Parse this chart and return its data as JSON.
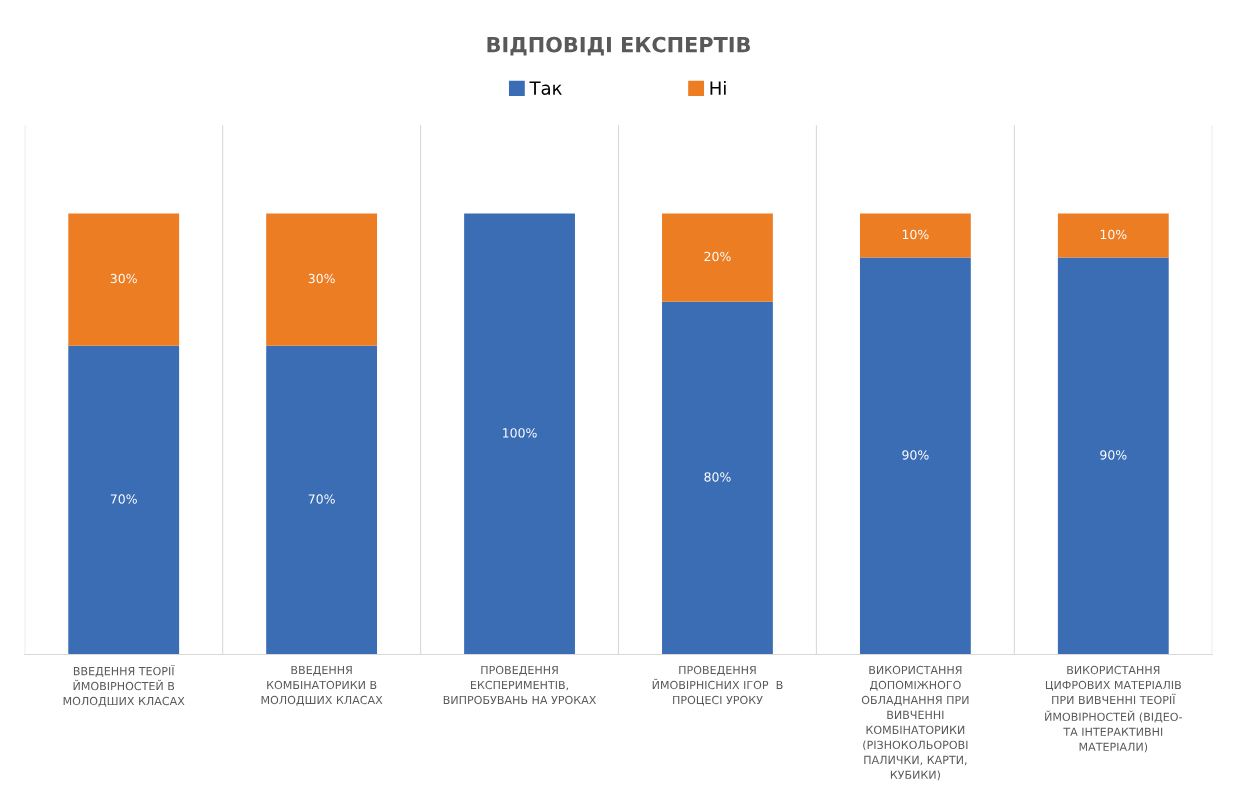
{
  "chart_data": {
    "type": "bar",
    "title": "ВІДПОВІДІ ЕКСПЕРТІВ",
    "categories": [
      "ВВЕДЕННЯ ТЕОРІЇ\nЙМОВІРНОСТЕЙ В\nМОЛОДШИХ КЛАСАХ",
      "ВВЕДЕННЯ\nКОМБІНАТОРИКИ В\nМОЛОДШИХ КЛАСАХ",
      "ПРОВЕДЕННЯ\nЕКСПЕРИМЕНТІВ,\nВИПРОБУВАНЬ НА УРОКАХ",
      "ПРОВЕДЕННЯ\nЙМОВІРНІСНИХ ІГОР  В\nПРОЦЕСІ УРОКУ",
      "ВИКОРИСТАННЯ\nДОПОМІЖНОГО\nОБЛАДНАННЯ ПРИ\nВИВЧЕННІ\nКОМБІНАТОРИКИ\n(РІЗНОКОЛЬОРОВІ\nПАЛИЧКИ, КАРТИ,\nКУБИКИ)",
      "ВИКОРИСТАННЯ\nЦИФРОВИХ МАТЕРІАЛІВ\nПРИ ВИВЧЕННІ ТЕОРІЇ\nЙМОВІРНОСТЕЙ (ВІДЕО-\nТА ІНТЕРАКТИВНІ\nМАТЕРІАЛИ)"
    ],
    "stacked": true,
    "grid": "x",
    "legend": "top",
    "series": [
      {
        "name": "Так",
        "color": "#3b6db5",
        "values": [
          70,
          70,
          100,
          80,
          90,
          90
        ],
        "value_labels": [
          "70%",
          "70%",
          "100%",
          "80%",
          "90%",
          "90%"
        ]
      },
      {
        "name": "Ні",
        "color": "#ed7d22",
        "values": [
          30,
          30,
          0,
          20,
          10,
          10
        ],
        "value_labels": [
          "30%",
          "30%",
          null,
          "20%",
          "10%",
          "10%"
        ]
      }
    ]
  }
}
